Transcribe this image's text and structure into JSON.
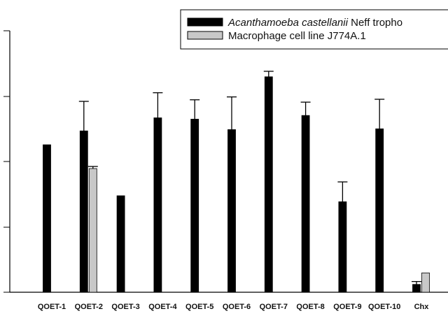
{
  "chart_data": {
    "type": "bar",
    "title": "",
    "xlabel": "",
    "ylabel": "",
    "ylim": [
      0,
      100
    ],
    "grid": false,
    "legend_position": "top-right",
    "categories": [
      "QOET-1",
      "QOET-2",
      "QOET-3",
      "QOET-4",
      "QOET-5",
      "QOET-6",
      "QOET-7",
      "QOET-8",
      "QOET-9",
      "QOET-10",
      "Chx"
    ],
    "series": [
      {
        "name": "Acanthamoeba castellanii Neff tropho",
        "name_italic_part": "Acanthamoeba castellanii",
        "name_rest": " Neff tropho",
        "color": "#000000",
        "values": [
          56.4,
          61.7,
          36.9,
          66.7,
          66.2,
          62.2,
          82.4,
          67.6,
          34.6,
          62.5,
          3.0
        ],
        "errors": [
          0,
          11.3,
          0,
          9.6,
          7.4,
          12.5,
          2.1,
          5.1,
          7.6,
          11.3,
          1.1
        ]
      },
      {
        "name": "Macrophage cell line J774A.1",
        "color": "#c8c8c8",
        "values": [
          null,
          47.3,
          null,
          null,
          null,
          null,
          null,
          null,
          null,
          null,
          7.4
        ],
        "errors": [
          null,
          0.8,
          null,
          null,
          null,
          null,
          null,
          null,
          null,
          null,
          0
        ]
      }
    ]
  }
}
